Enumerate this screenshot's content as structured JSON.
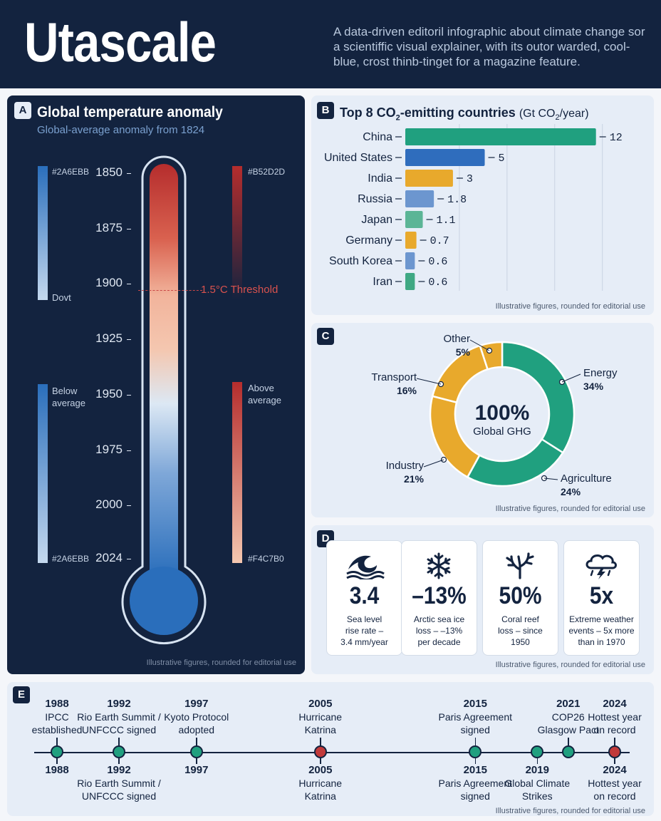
{
  "header": {
    "title": "Utascale",
    "subtitle": "A data-driven editoril infographic about climate change sor a scientiffic visual explainer, with its outor warded, cool-blue, crost thinb-tinget for a magazine feature."
  },
  "colors": {
    "navy": "#13233f",
    "blue": "#2A6EBB",
    "red": "#B52D2D",
    "light_red": "#F4C7B0",
    "teal": "#20a07f",
    "amber": "#e8a92c",
    "light_panel": "#e6edf7"
  },
  "panel_a": {
    "badge": "A",
    "title": "Global temperature anomaly",
    "subtitle": "Global-average anomaly from 1824",
    "left_top_hex": "#2A6EBB",
    "left_top_bottom_label": "Dovt",
    "left_bottom_label_1": "Below",
    "left_bottom_label_2": "average",
    "left_bottom_hex": "#2A6EBB",
    "right_top_hex": "#B52D2D",
    "right_bottom_label_1": "Above",
    "right_bottom_label_2": "average",
    "right_bottom_hex": "#F4C7B0",
    "threshold_label": "1.5°C Threshold",
    "footnote": "Illustrative figures, rounded for editorial use"
  },
  "panel_b": {
    "badge": "B",
    "title_bold": "Top 8 CO",
    "title_sub": "2",
    "title_bold_2": "-emitting countries",
    "title_unit_1": "(Gt CO",
    "title_unit_sub": "2",
    "title_unit_2": "/year)",
    "footnote": "Illustrative figures, rounded for editorial use"
  },
  "panel_c": {
    "badge": "C",
    "center_value": "100%",
    "center_label": "Global GHG",
    "footnote": "Illustrative figures, rounded for editorial use"
  },
  "panel_d": {
    "badge": "D",
    "footnote": "Illustrative figures, rounded for editorial use",
    "cards": [
      {
        "icon": "wave-icon",
        "value": "3.4",
        "desc_1": "Sea level",
        "desc_2": "rise rate –",
        "desc_3": "3.4 mm/year"
      },
      {
        "icon": "snowflake-icon",
        "value": "–13%",
        "desc_1": "Arctic sea ice",
        "desc_2": "loss – –13%",
        "desc_3": "per decade"
      },
      {
        "icon": "coral-icon",
        "value": "50%",
        "desc_1": "Coral reef",
        "desc_2": "loss – since",
        "desc_3": "1950"
      },
      {
        "icon": "storm-cloud-icon",
        "value": "5x",
        "desc_1": "Extreme weather",
        "desc_2": "events – 5x more",
        "desc_3": "than in 1970"
      }
    ]
  },
  "panel_e": {
    "badge": "E",
    "footnote": "Illustrative figures, rounded for editorial use",
    "above": [
      {
        "year": "1988",
        "l1": "IPCC",
        "l2": "established"
      },
      {
        "year": "1992",
        "l1": "Rio Earth Summit /",
        "l2": "UNFCCC signed"
      },
      {
        "year": "1997",
        "l1": "Kyoto Protocol",
        "l2": "adopted"
      },
      {
        "year": "2005",
        "l1": "Hurricane",
        "l2": "Katrina"
      },
      {
        "year": "2015",
        "l1": "Paris Agreement",
        "l2": "signed"
      },
      {
        "year": "2021",
        "l1": "COP26",
        "l2": "Glasgow Pact"
      },
      {
        "year": "2024",
        "l1": "Hottest year",
        "l2": "on record"
      }
    ],
    "below": [
      {
        "year": "1988",
        "l1": "",
        "l2": ""
      },
      {
        "year": "1992",
        "l1": "Rio Earth Summit /",
        "l2": "UNFCCC signed"
      },
      {
        "year": "1997",
        "l1": "",
        "l2": ""
      },
      {
        "year": "2005",
        "l1": "Hurricane",
        "l2": "Katrina"
      },
      {
        "year": "2015",
        "l1": "Paris Agreement",
        "l2": "signed"
      },
      {
        "year": "2019",
        "l1": "Global Climate",
        "l2": "Strikes"
      },
      {
        "year": "2024",
        "l1": "Hottest year",
        "l2": "on record"
      }
    ]
  },
  "chart_data": [
    {
      "type": "bar",
      "title": "Top 8 CO2-emitting countries (Gt CO2/year)",
      "orientation": "horizontal",
      "categories": [
        "China",
        "United States",
        "India",
        "Russia",
        "Japan",
        "Germany",
        "South Korea",
        "Iran"
      ],
      "values": [
        12,
        5,
        3,
        1.8,
        1.1,
        0.7,
        0.6,
        0.6
      ],
      "value_labels": [
        "12",
        "5",
        "3",
        "1.8",
        "1.1",
        "0.7",
        "0.6",
        "0.6"
      ],
      "bar_colors": [
        "#20a07f",
        "#2f6dbd",
        "#e8a92c",
        "#6c96cf",
        "#5bb596",
        "#e8a92c",
        "#6c96cf",
        "#3fa883"
      ],
      "xlim": [
        0,
        13
      ],
      "grid": true
    },
    {
      "type": "pie",
      "donut": true,
      "labels": [
        "Energy",
        "Agriculture",
        "Industry",
        "Transport",
        "Other"
      ],
      "values": [
        34,
        24,
        21,
        16,
        5
      ],
      "value_labels": [
        "34%",
        "24%",
        "21%",
        "16%",
        "5%"
      ],
      "colors": [
        "#20a07f",
        "#20a07f",
        "#e8a92c",
        "#e8a92c",
        "#e8a92c"
      ]
    },
    {
      "type": "line",
      "title": "Global temperature anomaly",
      "y_ticks": [
        "1850",
        "1875",
        "1900",
        "1925",
        "1950",
        "1975",
        "2000",
        "2024"
      ],
      "threshold": {
        "label": "1.5°C Threshold",
        "at": "1900"
      }
    }
  ]
}
